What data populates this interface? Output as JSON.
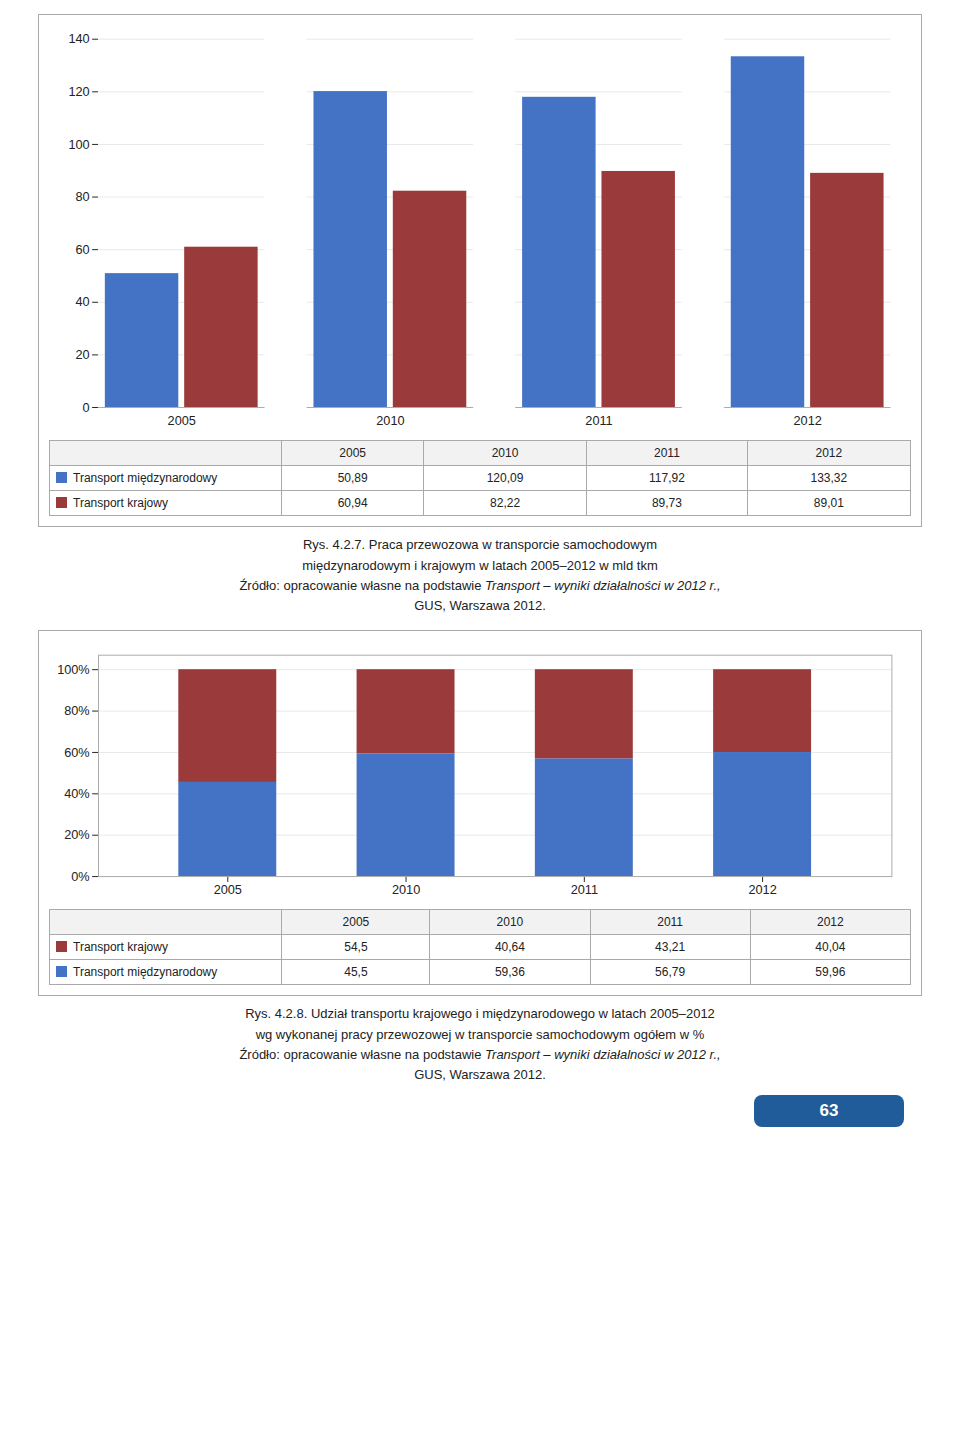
{
  "page_number": "63",
  "chart_data": [
    {
      "type": "bar",
      "title": "Rys. 4.2.7. Praca przewozowa w transporcie samochodowym",
      "subtitle": "międzynarodowym i krajowym w latach 2005–2012 w mld tkm",
      "annotations": [
        "Źródło: opracowanie własne na podstawie ",
        "Transport – wyniki działalności w 2012 r.,",
        "GUS, Warszawa 2012."
      ],
      "categories": [
        "2005",
        "2010",
        "2011",
        "2012"
      ],
      "series": [
        {
          "name": "Transport międzynarodowy",
          "color": "#4472C4",
          "values": [
            50.89,
            120.09,
            117.92,
            133.32
          ],
          "value_labels": [
            "50,89",
            "120,09",
            "117,92",
            "133,32"
          ]
        },
        {
          "name": "Transport krajowy",
          "color": "#9B3A3A",
          "values": [
            60.94,
            82.22,
            89.73,
            89.01
          ],
          "value_labels": [
            "60,94",
            "82,22",
            "89,73",
            "89,01"
          ]
        }
      ],
      "ylim": [
        0,
        140
      ],
      "yticks": [
        0,
        20,
        40,
        60,
        80,
        100,
        120,
        140
      ],
      "grid": true
    },
    {
      "type": "bar",
      "stacked": true,
      "title": "Rys. 4.2.8. Udział transportu krajowego i międzynarodowego w latach 2005–2012",
      "subtitle": "wg wykonanej pracy przewozowej w transporcie samochodowym ogółem w %",
      "annotations": [
        "Źródło: opracowanie własne na podstawie ",
        "Transport – wyniki działalności w 2012 r.,",
        "GUS, Warszawa 2012."
      ],
      "categories": [
        "2005",
        "2010",
        "2011",
        "2012"
      ],
      "series": [
        {
          "name": "Transport krajowy",
          "color": "#9B3A3A",
          "values": [
            54.5,
            40.64,
            43.21,
            40.04
          ],
          "value_labels": [
            "54,5",
            "40,64",
            "43,21",
            "40,04"
          ]
        },
        {
          "name": "Transport międzynarodowy",
          "color": "#4472C4",
          "values": [
            45.5,
            59.36,
            56.79,
            59.96
          ],
          "value_labels": [
            "45,5",
            "59,36",
            "56,79",
            "59,96"
          ]
        }
      ],
      "ylim": [
        0,
        107
      ],
      "yticks": [
        {
          "value": 0,
          "label": "0%"
        },
        {
          "value": 20,
          "label": "20%"
        },
        {
          "value": 40,
          "label": "40%"
        },
        {
          "value": 60,
          "label": "60%"
        },
        {
          "value": 80,
          "label": "80%"
        },
        {
          "value": 100,
          "label": "100%"
        }
      ],
      "grid": true
    }
  ]
}
